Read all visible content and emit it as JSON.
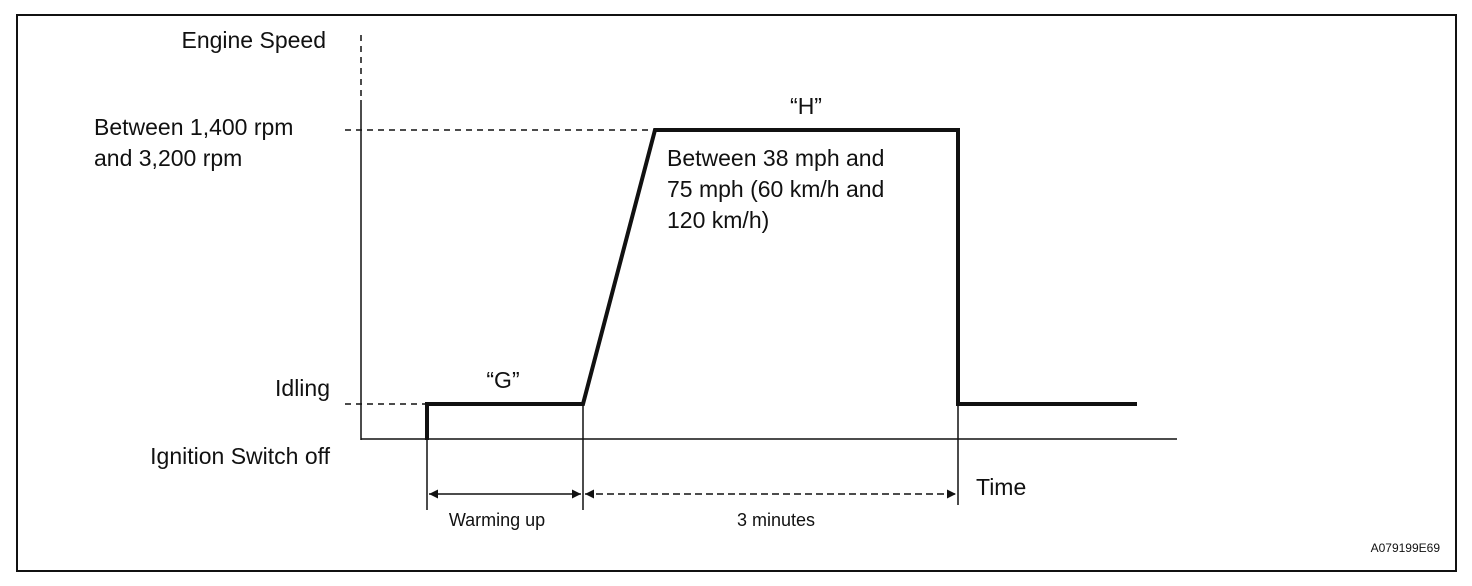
{
  "y_axis_title": "Engine Speed",
  "levels": {
    "high": [
      "Between 1,400 rpm",
      "and 3,200 rpm"
    ],
    "idling": "Idling",
    "off": "Ignition Switch off"
  },
  "phases": {
    "g": "“G”",
    "h": "“H”",
    "h_note": [
      "Between 38 mph and",
      "75 mph (60 km/h and",
      "120 km/h)"
    ]
  },
  "x_axis_title": "Time",
  "durations": {
    "warming_up": "Warming up",
    "three_minutes": "3 minutes"
  },
  "figure_id": "A079199E69"
}
